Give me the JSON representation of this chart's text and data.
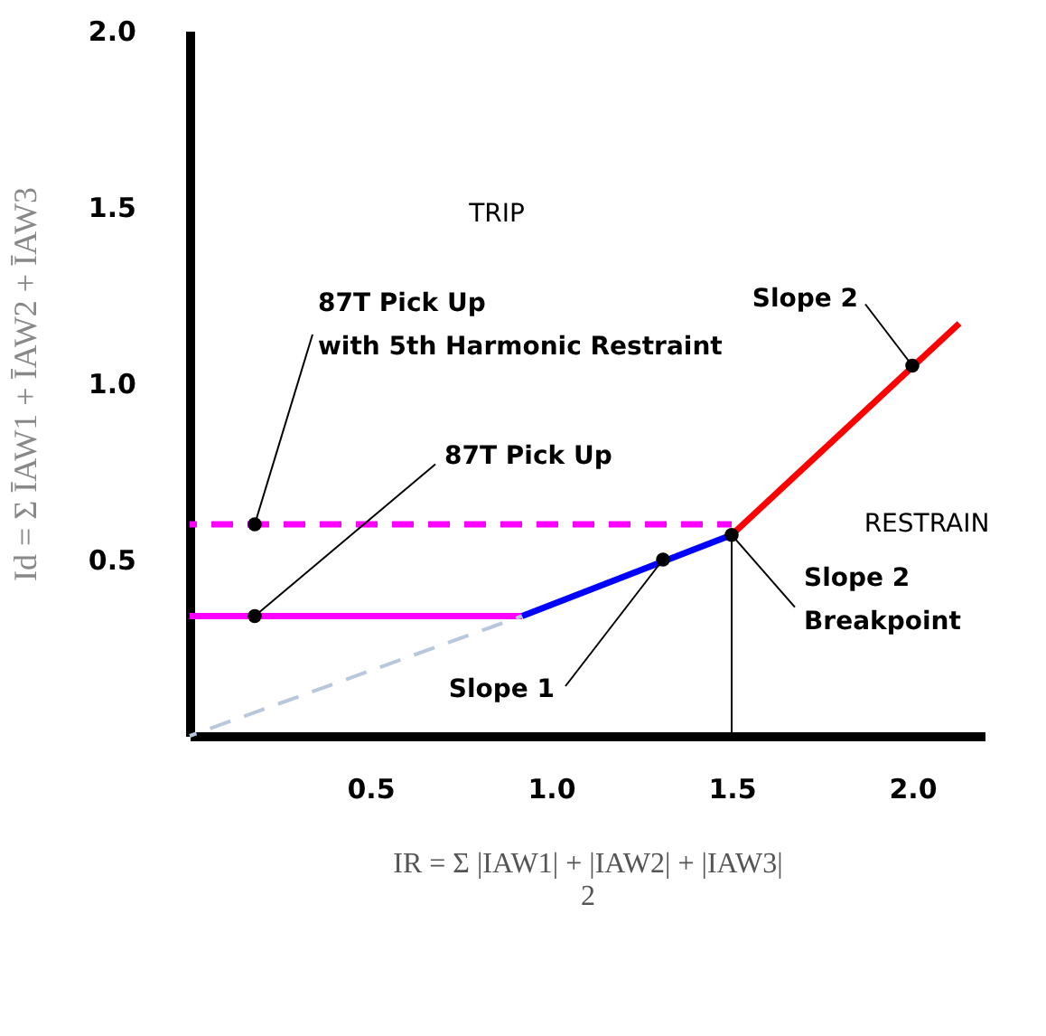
{
  "chart_data": {
    "type": "line",
    "xlabel": "IR = Σ |IAW1| + |IAW2| + |IAW3|\n2",
    "ylabel": "Id = Σ ĪAW1 + ĪAW2 + ĪAW3",
    "xlim": [
      0,
      2.2
    ],
    "ylim": [
      0,
      2.0
    ],
    "xticks": [
      0.5,
      {
        "value": 1,
        "label": "1.0"
      },
      1.5,
      {
        "value": 2,
        "label": "2.0"
      }
    ],
    "yticks": [
      0.5,
      {
        "value": 1,
        "label": "1.0"
      },
      1.5,
      {
        "value": 2,
        "label": "2.0"
      }
    ],
    "grid": false,
    "series": [
      {
        "color": "#ff00ff",
        "line_style": "solid",
        "x": [
          0,
          0.92
        ],
        "values": [
          0.34,
          0.34
        ]
      },
      {
        "color": "#ff00ff",
        "line_style": "dashed",
        "x": [
          0,
          1.5
        ],
        "values": [
          0.6,
          0.6
        ]
      },
      {
        "color": "#b8c8dc",
        "line_style": "dashed",
        "x": [
          0,
          0.92
        ],
        "values": [
          0,
          0.34
        ]
      },
      {
        "color": "#0000ff",
        "line_style": "solid",
        "x": [
          0.92,
          1.5
        ],
        "values": [
          0.34,
          0.57
        ]
      },
      {
        "color": "#ff0000",
        "line_style": "solid",
        "x": [
          1.5,
          2.13
        ],
        "values": [
          0.57,
          1.17
        ]
      },
      {
        "color": "#000000",
        "line_style": "solid",
        "x": [
          1.5,
          1.5
        ],
        "values": [
          0,
          0.57
        ]
      }
    ],
    "annotations": [
      {
        "text": "87T Pick Up\nwith 5th Harmonic Restraint",
        "x": 0.18,
        "y": 0.6
      },
      {
        "text": "87T Pick Up",
        "x": 0.18,
        "y": 0.34
      },
      {
        "text": "Slope 1",
        "x": 1.31,
        "y": 0.5
      },
      {
        "text": "Slope 2\nBreakpoint",
        "x": 1.5,
        "y": 0.57
      },
      {
        "text": "Slope 2",
        "x": 2.0,
        "y": 1.05
      },
      "TRIP",
      "RESTRAIN"
    ]
  }
}
